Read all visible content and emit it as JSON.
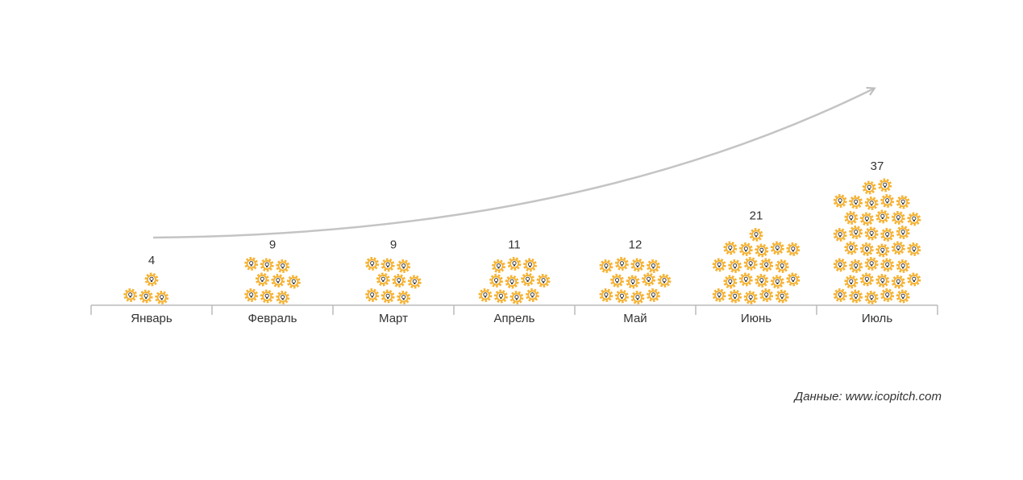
{
  "chart_data": {
    "type": "pictogram",
    "categories": [
      "Январь",
      "Февраль",
      "Март",
      "Апрель",
      "Май",
      "Июнь",
      "Июль"
    ],
    "values": [
      4,
      9,
      9,
      11,
      12,
      21,
      37
    ],
    "color": "#f5b335",
    "source": "Данные: www.icopitch.com"
  }
}
